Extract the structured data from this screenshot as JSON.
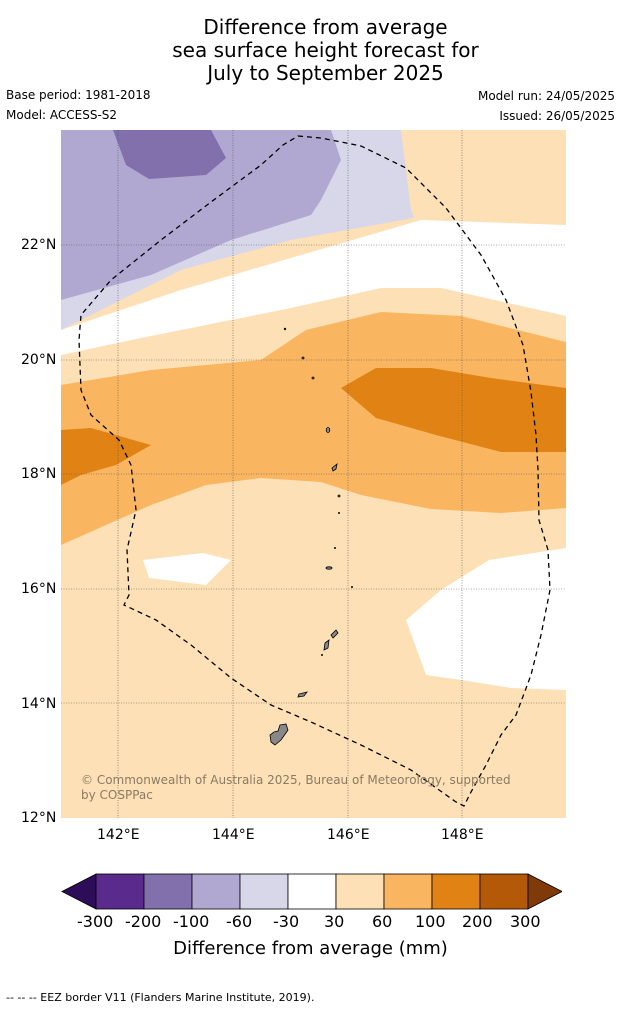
{
  "title_lines": [
    "Difference from average",
    "sea surface height forecast for",
    "July to September 2025"
  ],
  "base_period": "Base period: 1981-2018",
  "model": "Model: ACCESS-S2",
  "model_run": "Model run: 24/05/2025",
  "issued": "Issued: 26/05/2025",
  "lat_ticks": [
    "22°N",
    "20°N",
    "18°N",
    "16°N",
    "14°N",
    "12°N"
  ],
  "lon_ticks": [
    "142°E",
    "144°E",
    "146°E",
    "148°E"
  ],
  "copyright_lines": [
    "© Commonwealth of Australia 2025, Bureau of Meteorology, supported",
    "by COSPPac"
  ],
  "colorbar": {
    "title": "Difference from average (mm)",
    "labels": [
      "-300",
      "-200",
      "-100",
      "-60",
      "-30",
      "30",
      "60",
      "100",
      "200",
      "300"
    ],
    "colors": [
      "#2d0d58",
      "#5a2a8c",
      "#8270ad",
      "#b0a8d1",
      "#d8d7ea",
      "#ffffff",
      "#fde0b5",
      "#f9b560",
      "#e08314",
      "#b35908",
      "#7f3a08"
    ]
  },
  "footnote": "--  --  -- EEZ border V11 (Flanders Marine Institute, 2019)."
}
